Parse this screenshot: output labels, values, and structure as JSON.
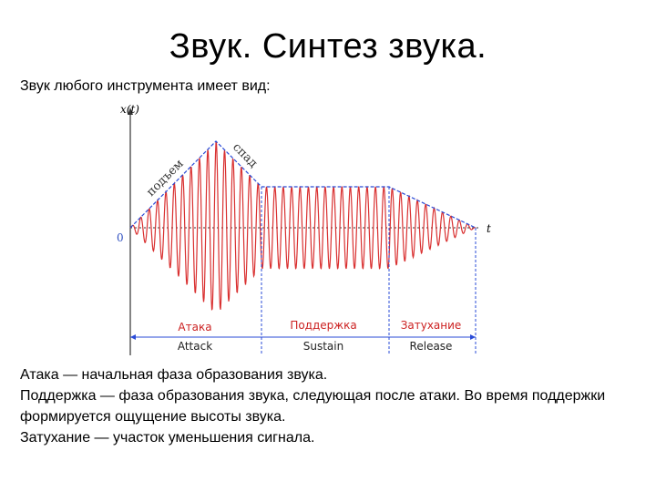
{
  "title": "Звук. Синтез звука.",
  "intro": "Звук любого инструмента имеет вид:",
  "diagram": {
    "y_axis_label": "x(t)",
    "x_axis_label": "t",
    "origin_label": "0",
    "rise_label": "подъем",
    "fall_label": "спад",
    "stages": [
      {
        "ru": "Атака",
        "en": "Attack"
      },
      {
        "ru": "Поддержка",
        "en": "Sustain"
      },
      {
        "ru": "Затухание",
        "en": "Release"
      }
    ],
    "colors": {
      "wave": "#d93030",
      "envelope": "#2a4bd7",
      "axis": "#333333"
    }
  },
  "descriptions": [
    "Атака — начальная фаза образования звука.",
    "Поддержка — фаза образования звука, следующая после атаки. Во время поддержки формируется ощущение высоты звука.",
    "Затухание — участок уменьшения сигнала."
  ]
}
